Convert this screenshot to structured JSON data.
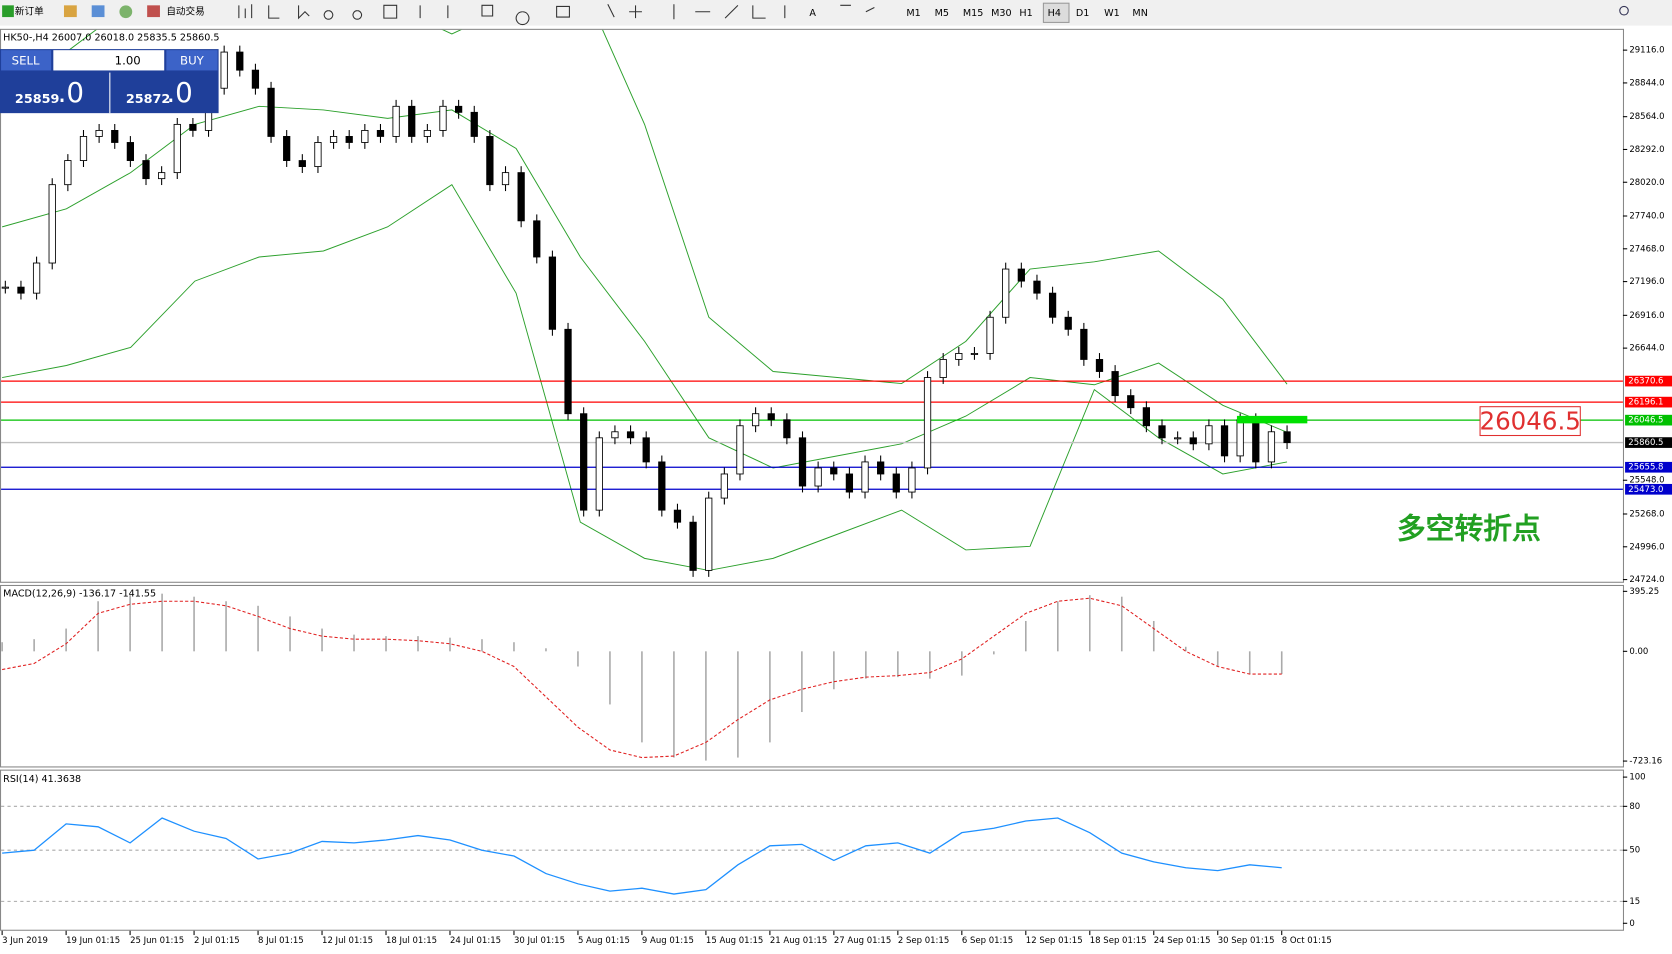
{
  "toolbar": {
    "new_order": "新订单",
    "auto_trade": "自动交易",
    "text_tool": "A",
    "timeframes": [
      "M1",
      "M5",
      "M15",
      "M30",
      "H1",
      "H4",
      "D1",
      "W1",
      "MN"
    ],
    "active_timeframe": "H4"
  },
  "trade_panel": {
    "sell": "SELL",
    "lot": "1.00",
    "buy": "BUY",
    "bid_big": "25859",
    "bid_small": ".0",
    "ask_big": "25872",
    "ask_small": ".0"
  },
  "chart": {
    "header": "HK50-,H4 26007.0 26018.0 25835.5 25860.5",
    "annotation": "多空转折点",
    "x_labels": [
      "3 Jun 2019",
      "19 Jun 01:15",
      "25 Jun 01:15",
      "2 Jul 01:15",
      "8 Jul 01:15",
      "12 Jul 01:15",
      "18 Jul 01:15",
      "24 Jul 01:15",
      "30 Jul 01:15",
      "5 Aug 01:15",
      "9 Aug 01:15",
      "15 Aug 01:15",
      "21 Aug 01:15",
      "27 Aug 01:15",
      "2 Sep 01:15",
      "6 Sep 01:15",
      "12 Sep 01:15",
      "18 Sep 01:15",
      "24 Sep 01:15",
      "30 Sep 01:15",
      "8 Oct 01:15"
    ],
    "price": {
      "ylim": [
        24706,
        29284
      ],
      "yticks": [
        {
          "value": 29116,
          "label": "29116.0"
        },
        {
          "value": 28844,
          "label": "28844.0"
        },
        {
          "value": 28564,
          "label": "28564.0"
        },
        {
          "value": 28292,
          "label": "28292.0"
        },
        {
          "value": 28020,
          "label": "28020.0"
        },
        {
          "value": 27740,
          "label": "27740.0"
        },
        {
          "value": 27468,
          "label": "27468.0"
        },
        {
          "value": 27196,
          "label": "27196.0"
        },
        {
          "value": 26916,
          "label": "26916.0"
        },
        {
          "value": 26644,
          "label": "26644.0"
        },
        {
          "value": 25548,
          "label": "25548.0"
        },
        {
          "value": 25268,
          "label": "25268.0"
        },
        {
          "value": 24996,
          "label": "24996.0"
        },
        {
          "value": 24724,
          "label": "24724.0"
        }
      ],
      "closes": [
        27150,
        27100,
        27350,
        28000,
        28200,
        28400,
        28450,
        28350,
        28200,
        28050,
        28100,
        28500,
        28450,
        28800,
        29100,
        28950,
        28800,
        28400,
        28200,
        28150,
        28350,
        28400,
        28350,
        28450,
        28400,
        28650,
        28400,
        28450,
        28650,
        28600,
        28400,
        28000,
        28100,
        27700,
        27400,
        26800,
        26100,
        25300,
        25900,
        25950,
        25900,
        25700,
        25300,
        25200,
        24800,
        25400,
        25600,
        26000,
        26100,
        26050,
        25900,
        25500,
        25650,
        25600,
        25450,
        25700,
        25600,
        25450,
        25650,
        26400,
        26550,
        26600,
        26600,
        26900,
        27300,
        27200,
        27100,
        26900,
        26800,
        26550,
        26450,
        26250,
        26150,
        26000,
        25900,
        25900,
        25850,
        26000,
        25750,
        26050,
        25700,
        25950,
        25860
      ],
      "bands": [
        {
          "name": "upper",
          "color": "#2ca02c",
          "values": [
            28900,
            29100,
            29500,
            29800,
            29900,
            29800,
            29500,
            29250,
            29500,
            29700,
            28500,
            26900,
            26450,
            26400,
            26350,
            26700,
            27300,
            27360,
            27450,
            27050,
            26345
          ]
        },
        {
          "name": "middle",
          "color": "#2ca02c",
          "values": [
            27650,
            27800,
            28100,
            28500,
            28650,
            28620,
            28550,
            28620,
            28300,
            27400,
            26700,
            25900,
            25650,
            25750,
            25850,
            26080,
            26400,
            26340,
            26520,
            26170,
            25946
          ]
        },
        {
          "name": "lower",
          "color": "#2ca02c",
          "values": [
            26400,
            26500,
            26650,
            27200,
            27400,
            27450,
            27650,
            28000,
            27100,
            25200,
            24900,
            24800,
            24900,
            25100,
            25300,
            24970,
            25000,
            26300,
            25900,
            25600,
            25700
          ]
        }
      ],
      "levels": [
        {
          "value": 26370.6,
          "color": "#ff0000"
        },
        {
          "value": 26196.1,
          "color": "#ff0000"
        },
        {
          "value": 26046.5,
          "color": "#00c000"
        },
        {
          "value": 25860.5,
          "color": "#c0c0c0"
        },
        {
          "value": 25655.8,
          "color": "#0000cc"
        },
        {
          "value": 25473,
          "label": "25473.0",
          "color": "#0000cc"
        }
      ]
    },
    "macd": {
      "label": "MACD(12,26,9) -136.17 -141.55",
      "ylim": [
        -758.3,
        430.4
      ],
      "yticks": [
        395.25,
        {
          "value": 0,
          "label": "0.00"
        },
        -723.16
      ],
      "histogram": [
        60,
        80,
        150,
        330,
        370,
        380,
        360,
        330,
        300,
        230,
        150,
        110,
        100,
        100,
        90,
        80,
        60,
        20,
        -100,
        -350,
        -600,
        -700,
        -720,
        -700,
        -600,
        -400,
        -250,
        -180,
        -170,
        -180,
        -160,
        -20,
        200,
        330,
        370,
        360,
        200,
        30,
        -100,
        -150,
        -150
      ],
      "signal": [
        -120,
        -80,
        50,
        250,
        310,
        330,
        330,
        300,
        230,
        150,
        100,
        80,
        80,
        70,
        50,
        0,
        -100,
        -300,
        -500,
        -650,
        -700,
        -690,
        -600,
        -450,
        -320,
        -250,
        -200,
        -170,
        -160,
        -140,
        -50,
        100,
        250,
        330,
        350,
        300,
        150,
        0,
        -100,
        -150,
        -150
      ]
    },
    "rsi": {
      "label": "RSI(14) 41.3638",
      "ylim": [
        -4.4,
        104.4
      ],
      "yticks": [
        100,
        80,
        50,
        15,
        0
      ],
      "color": "#1e90ff",
      "values": [
        48,
        50,
        68,
        66,
        55,
        72,
        63,
        58,
        44,
        48,
        56,
        55,
        57,
        60,
        57,
        50,
        46,
        34,
        27,
        22,
        24,
        20,
        23,
        40,
        53,
        54,
        43,
        53,
        55,
        48,
        62,
        65,
        70,
        72,
        62,
        48,
        42,
        38,
        36,
        40,
        38
      ]
    }
  }
}
